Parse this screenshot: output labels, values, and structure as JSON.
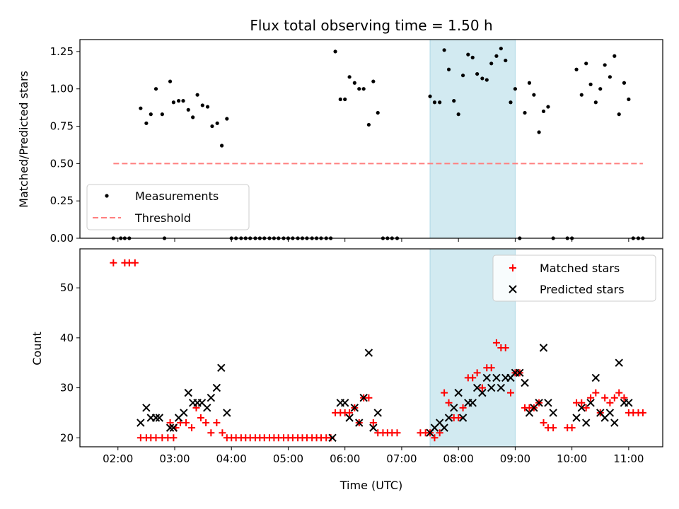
{
  "chart_data": {
    "type": "scatter",
    "title": "Flux total observing time = 1.50 h",
    "xlabel": "Time (UTC)",
    "x_ticks": [
      "02:00",
      "03:00",
      "04:00",
      "05:00",
      "06:00",
      "07:00",
      "08:00",
      "09:00",
      "10:00",
      "11:00"
    ],
    "x_range_hours": [
      1.33,
      11.6
    ],
    "highlight_span_hours": [
      7.5,
      9.0
    ],
    "colors": {
      "measurements": "#000000",
      "threshold": "#ff7f7f",
      "matched": "#ff0000",
      "predicted": "#000000",
      "highlight": "#add8e6"
    },
    "panels": [
      {
        "ylabel": "Matched/Predicted stars",
        "ylim": [
          0,
          1.33
        ],
        "y_ticks": [
          "0.00",
          "0.25",
          "0.50",
          "0.75",
          "1.00",
          "1.25"
        ],
        "legend": [
          "Measurements",
          "Threshold"
        ],
        "legend_position": "lower-left",
        "threshold": {
          "value": 0.5,
          "x_range_hours": [
            1.92,
            11.25
          ]
        },
        "measurements": [
          [
            1.92,
            0
          ],
          [
            2.05,
            0
          ],
          [
            2.12,
            0
          ],
          [
            2.2,
            0
          ],
          [
            2.4,
            0.87
          ],
          [
            2.5,
            0.77
          ],
          [
            2.58,
            0.83
          ],
          [
            2.67,
            1.0
          ],
          [
            2.78,
            0.83
          ],
          [
            2.92,
            1.05
          ],
          [
            2.98,
            0.91
          ],
          [
            3.07,
            0.92
          ],
          [
            3.15,
            0.92
          ],
          [
            3.24,
            0.86
          ],
          [
            3.32,
            0.81
          ],
          [
            3.4,
            0.96
          ],
          [
            3.49,
            0.89
          ],
          [
            3.58,
            0.88
          ],
          [
            3.66,
            0.75
          ],
          [
            3.75,
            0.77
          ],
          [
            3.83,
            0.62
          ],
          [
            3.92,
            0.8
          ],
          [
            2.82,
            0
          ],
          [
            4.0,
            0
          ],
          [
            4.08,
            0
          ],
          [
            4.17,
            0
          ],
          [
            4.25,
            0
          ],
          [
            4.33,
            0
          ],
          [
            4.42,
            0
          ],
          [
            4.5,
            0
          ],
          [
            4.58,
            0
          ],
          [
            4.67,
            0
          ],
          [
            4.75,
            0
          ],
          [
            4.83,
            0
          ],
          [
            4.92,
            0
          ],
          [
            5.0,
            0
          ],
          [
            5.08,
            0
          ],
          [
            5.17,
            0
          ],
          [
            5.25,
            0
          ],
          [
            5.33,
            0
          ],
          [
            5.42,
            0
          ],
          [
            5.5,
            0
          ],
          [
            5.58,
            0
          ],
          [
            5.67,
            0
          ],
          [
            5.75,
            0
          ],
          [
            5.83,
            1.25
          ],
          [
            5.92,
            0.93
          ],
          [
            6.0,
            0.93
          ],
          [
            6.08,
            1.08
          ],
          [
            6.17,
            1.04
          ],
          [
            6.25,
            1.0
          ],
          [
            6.33,
            1.0
          ],
          [
            6.42,
            0.76
          ],
          [
            6.5,
            1.05
          ],
          [
            6.58,
            0.84
          ],
          [
            6.67,
            0
          ],
          [
            6.75,
            0
          ],
          [
            6.83,
            0
          ],
          [
            6.92,
            0
          ],
          [
            7.5,
            0.95
          ],
          [
            7.58,
            0.91
          ],
          [
            7.67,
            0.91
          ],
          [
            7.75,
            1.26
          ],
          [
            7.83,
            1.13
          ],
          [
            7.92,
            0.92
          ],
          [
            8.0,
            0.83
          ],
          [
            8.08,
            1.09
          ],
          [
            8.17,
            1.23
          ],
          [
            8.25,
            1.21
          ],
          [
            8.33,
            1.1
          ],
          [
            8.42,
            1.07
          ],
          [
            8.5,
            1.06
          ],
          [
            8.58,
            1.17
          ],
          [
            8.67,
            1.22
          ],
          [
            8.75,
            1.27
          ],
          [
            8.83,
            1.19
          ],
          [
            8.92,
            0.91
          ],
          [
            9.0,
            1.0
          ],
          [
            9.08,
            0
          ],
          [
            9.17,
            0.84
          ],
          [
            9.25,
            1.04
          ],
          [
            9.33,
            0.96
          ],
          [
            9.42,
            0.71
          ],
          [
            9.5,
            0.85
          ],
          [
            9.58,
            0.88
          ],
          [
            9.67,
            0
          ],
          [
            9.92,
            0
          ],
          [
            10.0,
            0
          ],
          [
            10.08,
            1.13
          ],
          [
            10.17,
            0.96
          ],
          [
            10.25,
            1.17
          ],
          [
            10.33,
            1.03
          ],
          [
            10.42,
            0.91
          ],
          [
            10.5,
            1.0
          ],
          [
            10.58,
            1.16
          ],
          [
            10.67,
            1.08
          ],
          [
            10.75,
            1.22
          ],
          [
            10.83,
            0.83
          ],
          [
            10.92,
            1.04
          ],
          [
            11.0,
            0.93
          ],
          [
            11.08,
            0
          ],
          [
            11.17,
            0
          ],
          [
            11.25,
            0
          ]
        ]
      },
      {
        "ylabel": "Count",
        "ylim": [
          18.2,
          57.8
        ],
        "y_ticks": [
          "20",
          "30",
          "40",
          "50"
        ],
        "legend": [
          "Matched stars",
          "Predicted stars"
        ],
        "legend_position": "upper-right",
        "matched": [
          [
            1.92,
            55
          ],
          [
            2.12,
            55
          ],
          [
            2.2,
            55
          ],
          [
            2.3,
            55
          ],
          [
            2.4,
            20
          ],
          [
            2.5,
            20
          ],
          [
            2.58,
            20
          ],
          [
            2.67,
            20
          ],
          [
            2.78,
            20
          ],
          [
            2.88,
            20
          ],
          [
            2.98,
            20
          ],
          [
            2.92,
            23
          ],
          [
            3.02,
            22
          ],
          [
            3.1,
            23
          ],
          [
            3.2,
            23
          ],
          [
            3.3,
            22
          ],
          [
            3.38,
            26
          ],
          [
            3.46,
            24
          ],
          [
            3.55,
            23
          ],
          [
            3.64,
            21
          ],
          [
            3.74,
            23
          ],
          [
            3.84,
            21
          ],
          [
            3.92,
            20
          ],
          [
            4.0,
            20
          ],
          [
            4.08,
            20
          ],
          [
            4.17,
            20
          ],
          [
            4.25,
            20
          ],
          [
            4.33,
            20
          ],
          [
            4.42,
            20
          ],
          [
            4.5,
            20
          ],
          [
            4.58,
            20
          ],
          [
            4.67,
            20
          ],
          [
            4.75,
            20
          ],
          [
            4.83,
            20
          ],
          [
            4.92,
            20
          ],
          [
            5.0,
            20
          ],
          [
            5.08,
            20
          ],
          [
            5.17,
            20
          ],
          [
            5.25,
            20
          ],
          [
            5.33,
            20
          ],
          [
            5.42,
            20
          ],
          [
            5.5,
            20
          ],
          [
            5.58,
            20
          ],
          [
            5.67,
            20
          ],
          [
            5.75,
            20
          ],
          [
            5.83,
            25
          ],
          [
            5.92,
            25
          ],
          [
            6.0,
            25
          ],
          [
            6.08,
            25
          ],
          [
            6.17,
            26
          ],
          [
            6.25,
            23
          ],
          [
            6.33,
            28
          ],
          [
            6.42,
            28
          ],
          [
            6.5,
            23
          ],
          [
            6.58,
            21
          ],
          [
            6.67,
            21
          ],
          [
            6.75,
            21
          ],
          [
            6.83,
            21
          ],
          [
            6.92,
            21
          ],
          [
            7.33,
            21
          ],
          [
            7.42,
            21
          ],
          [
            7.5,
            21
          ],
          [
            7.58,
            20
          ],
          [
            7.67,
            21
          ],
          [
            7.75,
            29
          ],
          [
            7.83,
            27
          ],
          [
            7.92,
            24
          ],
          [
            8.0,
            24
          ],
          [
            8.08,
            26
          ],
          [
            8.17,
            32
          ],
          [
            8.25,
            32
          ],
          [
            8.33,
            33
          ],
          [
            8.42,
            30
          ],
          [
            8.5,
            34
          ],
          [
            8.58,
            34
          ],
          [
            8.67,
            39
          ],
          [
            8.75,
            38
          ],
          [
            8.83,
            38
          ],
          [
            8.92,
            29
          ],
          [
            9.0,
            33
          ],
          [
            9.08,
            33
          ],
          [
            9.17,
            26
          ],
          [
            9.25,
            26
          ],
          [
            9.33,
            26
          ],
          [
            9.42,
            27
          ],
          [
            9.5,
            23
          ],
          [
            9.58,
            22
          ],
          [
            9.67,
            22
          ],
          [
            9.92,
            22
          ],
          [
            10.0,
            22
          ],
          [
            10.08,
            27
          ],
          [
            10.17,
            27
          ],
          [
            10.25,
            26
          ],
          [
            10.33,
            28
          ],
          [
            10.42,
            29
          ],
          [
            10.5,
            25
          ],
          [
            10.58,
            28
          ],
          [
            10.67,
            27
          ],
          [
            10.75,
            28
          ],
          [
            10.83,
            29
          ],
          [
            10.92,
            28
          ],
          [
            11.0,
            25
          ],
          [
            11.08,
            25
          ],
          [
            11.17,
            25
          ],
          [
            11.25,
            25
          ]
        ],
        "predicted": [
          [
            2.4,
            23
          ],
          [
            2.5,
            26
          ],
          [
            2.58,
            24
          ],
          [
            2.67,
            24
          ],
          [
            2.73,
            24
          ],
          [
            2.92,
            22
          ],
          [
            2.98,
            22
          ],
          [
            3.07,
            24
          ],
          [
            3.16,
            25
          ],
          [
            3.24,
            29
          ],
          [
            3.32,
            27
          ],
          [
            3.4,
            27
          ],
          [
            3.48,
            27
          ],
          [
            3.57,
            26
          ],
          [
            3.64,
            28
          ],
          [
            3.74,
            30
          ],
          [
            3.82,
            34
          ],
          [
            3.92,
            25
          ],
          [
            5.78,
            20
          ],
          [
            5.92,
            27
          ],
          [
            6.0,
            27
          ],
          [
            6.08,
            24
          ],
          [
            6.17,
            26
          ],
          [
            6.25,
            23
          ],
          [
            6.33,
            28
          ],
          [
            6.42,
            37
          ],
          [
            6.5,
            22
          ],
          [
            6.58,
            25
          ],
          [
            7.5,
            21
          ],
          [
            7.58,
            22
          ],
          [
            7.67,
            23
          ],
          [
            7.75,
            22
          ],
          [
            7.83,
            24
          ],
          [
            7.92,
            26
          ],
          [
            8.0,
            29
          ],
          [
            8.08,
            24
          ],
          [
            8.17,
            27
          ],
          [
            8.25,
            27
          ],
          [
            8.33,
            30
          ],
          [
            8.42,
            29
          ],
          [
            8.5,
            32
          ],
          [
            8.58,
            30
          ],
          [
            8.67,
            32
          ],
          [
            8.75,
            30
          ],
          [
            8.83,
            32
          ],
          [
            8.92,
            32
          ],
          [
            9.0,
            33
          ],
          [
            9.08,
            33
          ],
          [
            9.17,
            31
          ],
          [
            9.25,
            25
          ],
          [
            9.33,
            26
          ],
          [
            9.42,
            27
          ],
          [
            9.5,
            38
          ],
          [
            9.58,
            27
          ],
          [
            9.67,
            25
          ],
          [
            10.08,
            24
          ],
          [
            10.17,
            26
          ],
          [
            10.25,
            23
          ],
          [
            10.33,
            27
          ],
          [
            10.42,
            32
          ],
          [
            10.5,
            25
          ],
          [
            10.58,
            24
          ],
          [
            10.67,
            25
          ],
          [
            10.75,
            23
          ],
          [
            10.83,
            35
          ],
          [
            10.92,
            27
          ],
          [
            11.0,
            27
          ]
        ]
      }
    ]
  }
}
